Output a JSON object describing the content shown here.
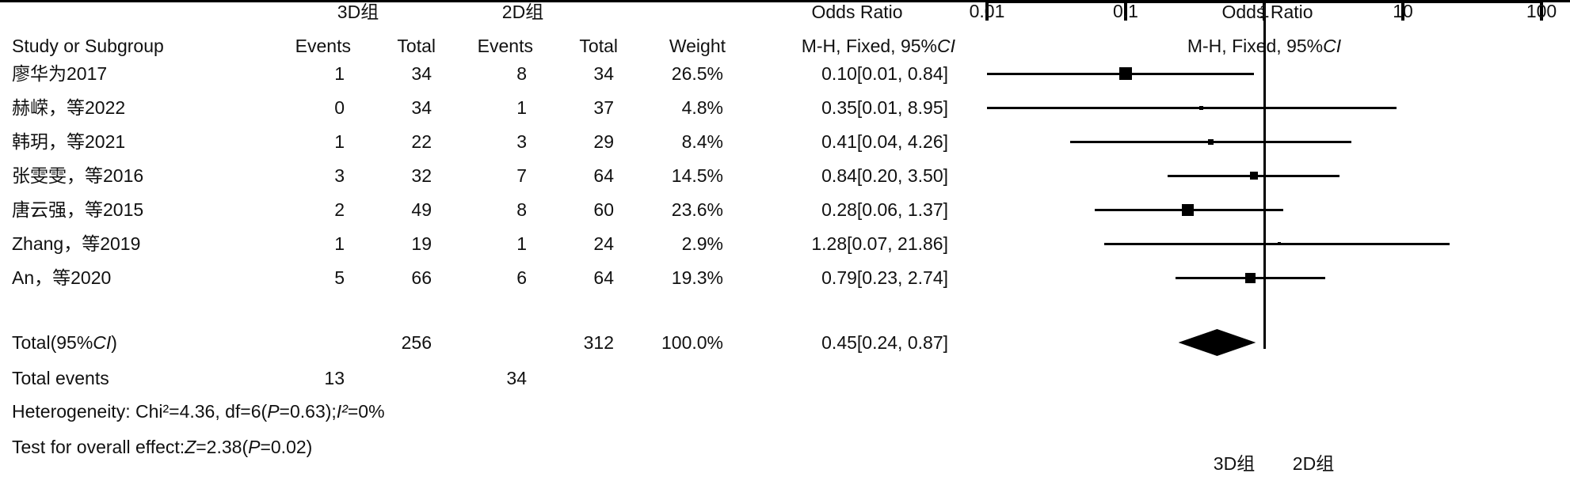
{
  "header": {
    "group1": "3D组",
    "group2": "2D组",
    "study_col": "Study or Subgroup",
    "events_col": "Events",
    "total_col": "Total",
    "weight_col": "Weight",
    "or_title_left": "Odds Ratio",
    "or_sub_left": "M-H, Fixed, 95%CI",
    "or_title_right": "Odds Ratio",
    "or_sub_right": "M-H, Fixed, 95%CI"
  },
  "chart_data": {
    "type": "forest",
    "effect_measure": "Odds Ratio, M-H, Fixed, 95% CI",
    "x_scale": "log",
    "axis": {
      "min": 0.01,
      "max": 100,
      "null_value": 1,
      "ticks": [
        0.01,
        0.1,
        1,
        10,
        100
      ],
      "tick_labels": [
        "0.01",
        "0.1",
        "1",
        "10",
        "100"
      ],
      "left_group_label": "3D组",
      "right_group_label": "2D组"
    },
    "studies": [
      {
        "name": "廖华为2017",
        "events1": "1",
        "total1": "34",
        "events2": "8",
        "total2": "34",
        "weight_text": "26.5%",
        "weight": 26.5,
        "or": 0.1,
        "lo": 0.01,
        "hi": 0.84,
        "or_text": "0.10[0.01, 0.84]"
      },
      {
        "name": "赫嵘，等2022",
        "events1": "0",
        "total1": "34",
        "events2": "1",
        "total2": "37",
        "weight_text": "4.8%",
        "weight": 4.8,
        "or": 0.35,
        "lo": 0.01,
        "hi": 8.95,
        "or_text": "0.35[0.01, 8.95]"
      },
      {
        "name": "韩玥，等2021",
        "events1": "1",
        "total1": "22",
        "events2": "3",
        "total2": "29",
        "weight_text": "8.4%",
        "weight": 8.4,
        "or": 0.41,
        "lo": 0.04,
        "hi": 4.26,
        "or_text": "0.41[0.04, 4.26]"
      },
      {
        "name": "张雯雯，等2016",
        "events1": "3",
        "total1": "32",
        "events2": "7",
        "total2": "64",
        "weight_text": "14.5%",
        "weight": 14.5,
        "or": 0.84,
        "lo": 0.2,
        "hi": 3.5,
        "or_text": "0.84[0.20, 3.50]"
      },
      {
        "name": "唐云强，等2015",
        "events1": "2",
        "total1": "49",
        "events2": "8",
        "total2": "60",
        "weight_text": "23.6%",
        "weight": 23.6,
        "or": 0.28,
        "lo": 0.06,
        "hi": 1.37,
        "or_text": "0.28[0.06, 1.37]"
      },
      {
        "name": "Zhang，等2019",
        "events1": "1",
        "total1": "19",
        "events2": "1",
        "total2": "24",
        "weight_text": "2.9%",
        "weight": 2.9,
        "or": 1.28,
        "lo": 0.07,
        "hi": 21.86,
        "or_text": "1.28[0.07, 21.86]"
      },
      {
        "name": "An，等2020",
        "events1": "5",
        "total1": "66",
        "events2": "6",
        "total2": "64",
        "weight_text": "19.3%",
        "weight": 19.3,
        "or": 0.79,
        "lo": 0.23,
        "hi": 2.74,
        "or_text": "0.79[0.23, 2.74]"
      }
    ],
    "total": {
      "label": "Total(95%CI)",
      "total1": "256",
      "total2": "312",
      "weight_text": "100.0%",
      "or": 0.45,
      "lo": 0.24,
      "hi": 0.87,
      "or_text": "0.45[0.24, 0.87]"
    },
    "total_events": {
      "label": "Total events",
      "events1": "13",
      "events2": "34"
    },
    "heterogeneity": "Heterogeneity: Chi²=4.36, df=6(P=0.63);I²=0%",
    "overall_effect": "Test for overall effect:Z=2.38(P=0.02)"
  }
}
